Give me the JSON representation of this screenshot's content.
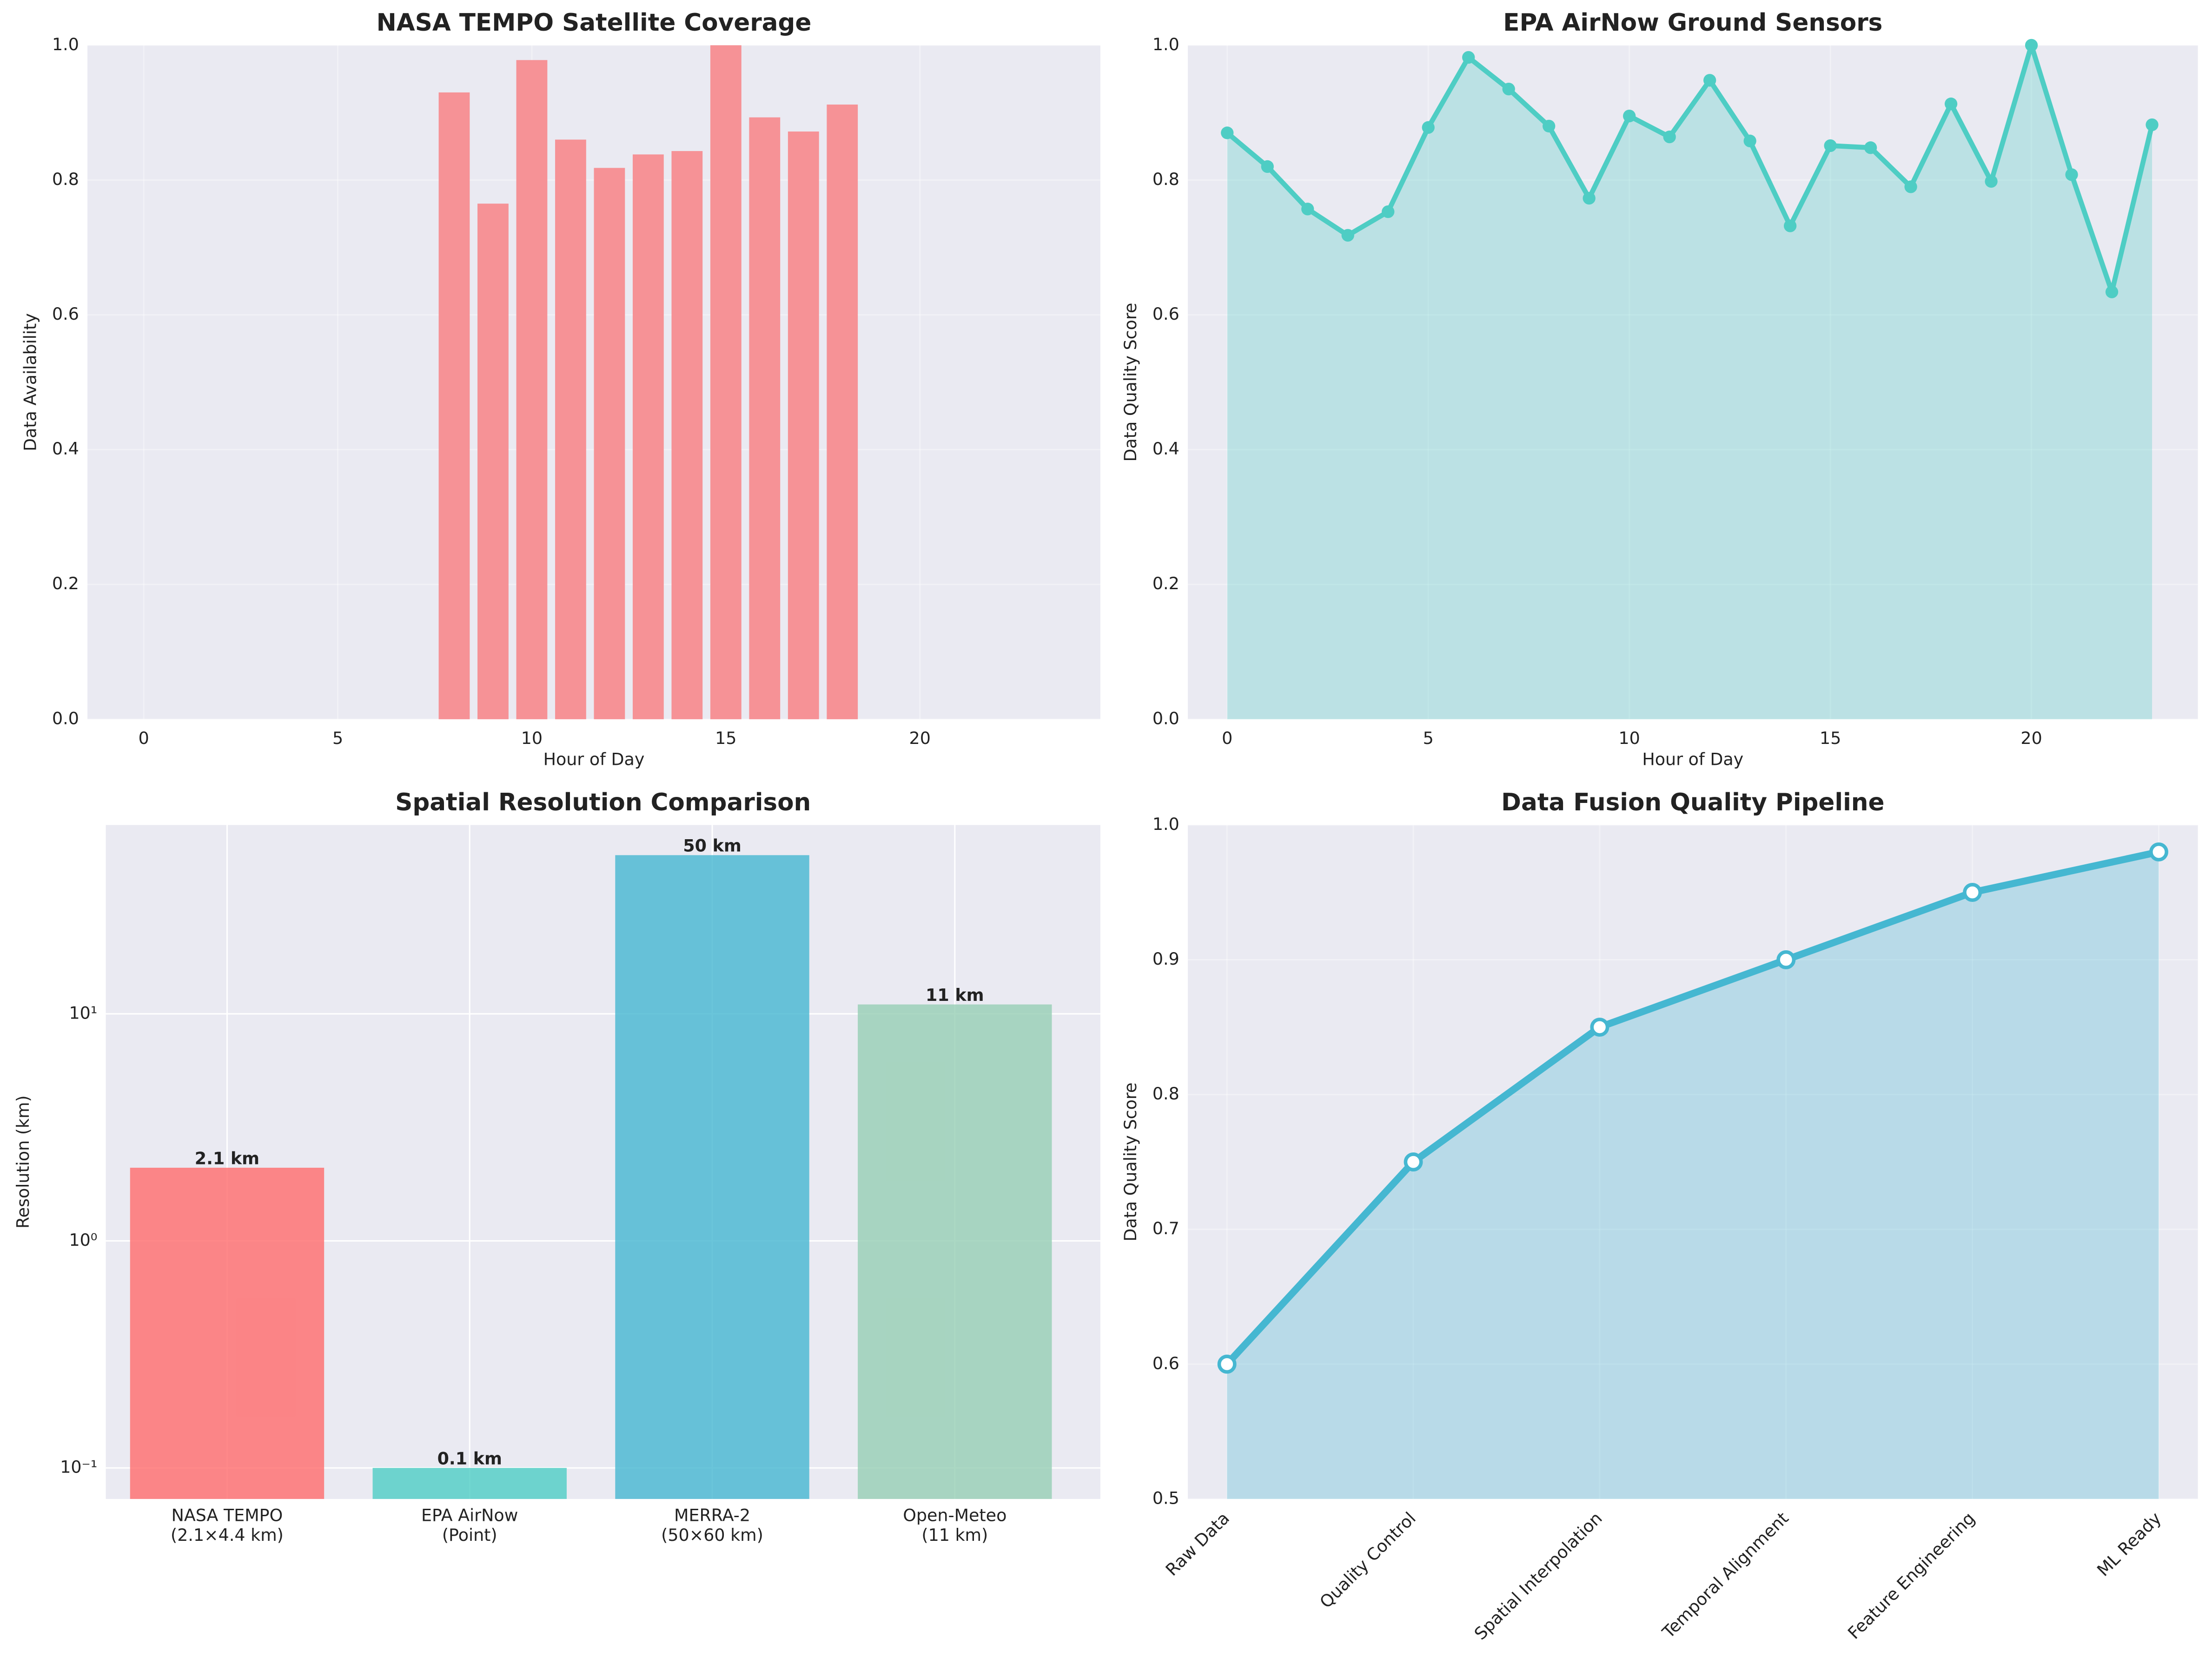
{
  "chart_data": [
    {
      "type": "bar",
      "title": "NASA TEMPO Satellite Coverage",
      "xlabel": "Hour of Day",
      "ylabel": "Data Availability",
      "x": [
        8,
        9,
        10,
        11,
        12,
        13,
        14,
        15,
        16,
        17,
        18
      ],
      "values": [
        0.93,
        0.765,
        0.978,
        0.86,
        0.818,
        0.838,
        0.843,
        1.0,
        0.893,
        0.872,
        0.912
      ],
      "color": "#f69296",
      "xlim": [
        -1.45,
        24.65
      ],
      "xticks": [
        0,
        5,
        10,
        15,
        20
      ],
      "ylim": [
        0,
        1
      ],
      "yticks": [
        {
          "value": 0,
          "label": "0.0"
        },
        0.2,
        0.4,
        0.6,
        0.8,
        {
          "value": 1,
          "label": "1.0"
        }
      ],
      "grid": true,
      "grid_alpha": 0.35
    },
    {
      "type": "line",
      "title": "EPA AirNow Ground Sensors",
      "xlabel": "Hour of Day",
      "ylabel": "Data Quality Score",
      "x": [
        0,
        1,
        2,
        3,
        4,
        5,
        6,
        7,
        8,
        9,
        10,
        11,
        12,
        13,
        14,
        15,
        16,
        17,
        18,
        19,
        20,
        21,
        22,
        23
      ],
      "values": [
        0.87,
        0.82,
        0.757,
        0.718,
        0.753,
        0.878,
        0.982,
        0.935,
        0.88,
        0.773,
        0.895,
        0.864,
        0.948,
        0.858,
        0.732,
        0.851,
        0.848,
        0.79,
        0.913,
        0.798,
        1.0,
        0.808,
        0.634,
        0.882
      ],
      "color": "#4ecdc4",
      "area": true,
      "xlim": [
        -0.98,
        24.14
      ],
      "xticks": [
        0,
        5,
        10,
        15,
        20
      ],
      "ylim": [
        0,
        1
      ],
      "yticks": [
        {
          "value": 0,
          "label": "0.0"
        },
        0.2,
        0.4,
        0.6,
        0.8,
        {
          "value": 1,
          "label": "1.0"
        }
      ],
      "grid": true,
      "grid_alpha": 0.35
    },
    {
      "type": "bar",
      "title": "Spatial Resolution Comparison",
      "ylabel": "Resolution (km)",
      "categories": [
        "NASA TEMPO\n(2.1×4.4 km)",
        "EPA AirNow\n(Point)",
        "MERRA-2\n(50×60 km)",
        "Open-Meteo\n(11 km)"
      ],
      "values": [
        2.1,
        0.1,
        50,
        11
      ],
      "value_labels": [
        "2.1 km",
        "0.1 km",
        "50 km",
        "11 km"
      ],
      "colors": [
        "#ff6b6b",
        "#4ecdc4",
        "#45b7d1",
        "#96ceb4"
      ],
      "log_scale": true,
      "ylim": [
        0.073,
        67.9
      ],
      "yticks": [
        {
          "value": 0.1,
          "label": "10⁻¹"
        },
        {
          "value": 1,
          "label": "10⁰"
        },
        {
          "value": 10,
          "label": "10¹"
        }
      ],
      "grid": true,
      "grid_alpha": 1
    },
    {
      "type": "line",
      "title": "Data Fusion Quality Pipeline",
      "ylabel": "Data Quality Score",
      "categories": [
        "Raw Data",
        "Quality Control",
        "Spatial Interpolation",
        "Temporal Alignment",
        "Feature Engineering",
        "ML Ready"
      ],
      "values": [
        0.6,
        0.75,
        0.85,
        0.9,
        0.95,
        0.98
      ],
      "color": "#45b7d1",
      "area": true,
      "marker_fill": "#ffffff",
      "ylim": [
        0.5,
        1.0
      ],
      "yticks": [
        0.5,
        0.6,
        0.7,
        0.8,
        0.9,
        {
          "value": 1,
          "label": "1.0"
        }
      ],
      "grid": true,
      "grid_alpha": 0.35
    }
  ]
}
